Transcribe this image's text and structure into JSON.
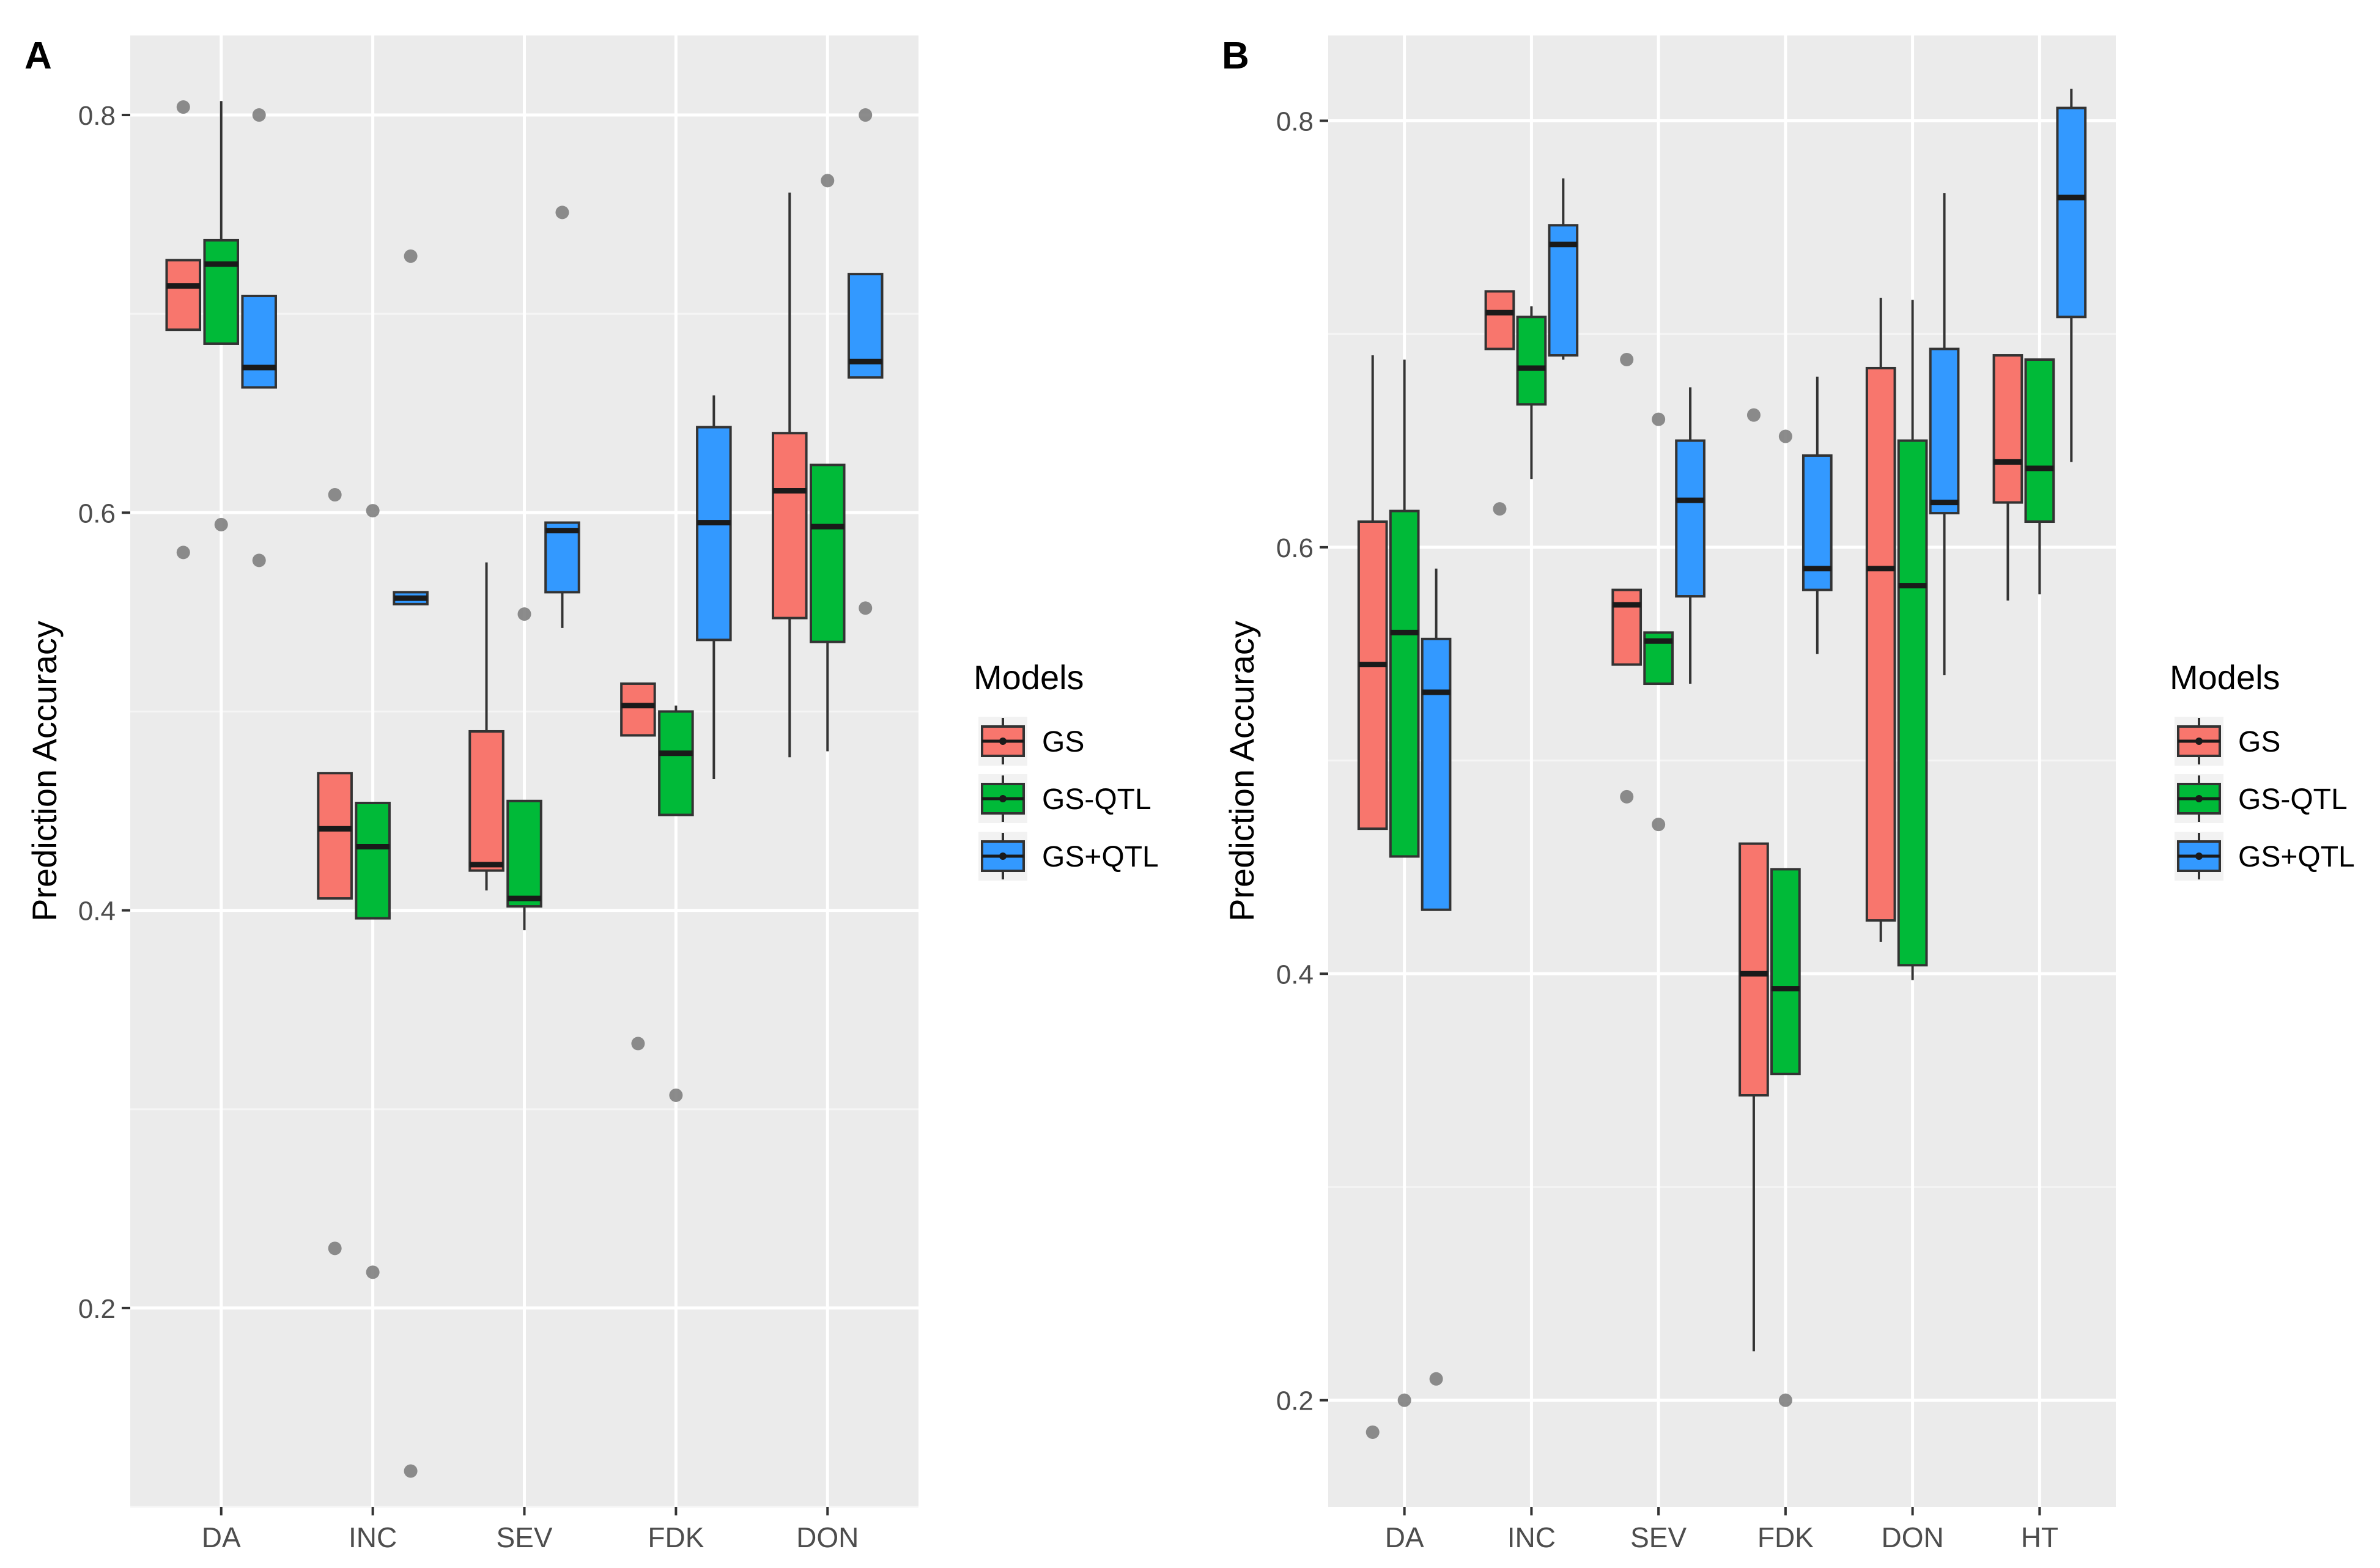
{
  "chart_data": [
    {
      "panel": "A",
      "type": "box",
      "ylabel": "Prediction Accuracy",
      "xlabel": "",
      "ylim": [
        0.1,
        0.84
      ],
      "yticks": [
        0.2,
        0.4,
        0.6,
        0.8
      ],
      "ytick_labels": [
        "0.2",
        "0.4",
        "0.6",
        "0.8"
      ],
      "grid": true,
      "legend": {
        "title": "Models",
        "placement": "right"
      },
      "categories": [
        "DA",
        "INC",
        "SEV",
        "FDK",
        "DON"
      ],
      "series": [
        {
          "name": "GS",
          "color": "#F8766D",
          "boxes": [
            {
              "category": "DA",
              "lower": 0.692,
              "q1": 0.692,
              "median": 0.714,
              "q3": 0.727,
              "upper": 0.727,
              "outliers": [
                0.804,
                0.58
              ]
            },
            {
              "category": "INC",
              "lower": 0.406,
              "q1": 0.406,
              "median": 0.441,
              "q3": 0.469,
              "upper": 0.469,
              "outliers": [
                0.609,
                0.23
              ]
            },
            {
              "category": "SEV",
              "lower": 0.41,
              "q1": 0.42,
              "median": 0.423,
              "q3": 0.49,
              "upper": 0.575,
              "outliers": []
            },
            {
              "category": "FDK",
              "lower": 0.488,
              "q1": 0.488,
              "median": 0.503,
              "q3": 0.514,
              "upper": 0.514,
              "outliers": [
                0.333
              ]
            },
            {
              "category": "DON",
              "lower": 0.477,
              "q1": 0.547,
              "median": 0.611,
              "q3": 0.64,
              "upper": 0.761,
              "outliers": []
            }
          ]
        },
        {
          "name": "GS-QTL",
          "color": "#00BA38",
          "boxes": [
            {
              "category": "DA",
              "lower": 0.685,
              "q1": 0.685,
              "median": 0.725,
              "q3": 0.737,
              "upper": 0.807,
              "outliers": [
                0.594
              ]
            },
            {
              "category": "INC",
              "lower": 0.396,
              "q1": 0.396,
              "median": 0.432,
              "q3": 0.454,
              "upper": 0.454,
              "outliers": [
                0.601,
                0.218
              ]
            },
            {
              "category": "SEV",
              "lower": 0.39,
              "q1": 0.402,
              "median": 0.406,
              "q3": 0.455,
              "upper": 0.455,
              "outliers": [
                0.549
              ]
            },
            {
              "category": "FDK",
              "lower": 0.448,
              "q1": 0.448,
              "median": 0.479,
              "q3": 0.5,
              "upper": 0.503,
              "outliers": [
                0.307
              ]
            },
            {
              "category": "DON",
              "lower": 0.48,
              "q1": 0.535,
              "median": 0.593,
              "q3": 0.624,
              "upper": 0.624,
              "outliers": [
                0.767
              ]
            }
          ]
        },
        {
          "name": "GS+QTL",
          "color": "#3399FF",
          "boxes": [
            {
              "category": "DA",
              "lower": 0.663,
              "q1": 0.663,
              "median": 0.673,
              "q3": 0.709,
              "upper": 0.709,
              "outliers": [
                0.8,
                0.576
              ]
            },
            {
              "category": "INC",
              "lower": 0.554,
              "q1": 0.554,
              "median": 0.557,
              "q3": 0.56,
              "upper": 0.56,
              "outliers": [
                0.729,
                0.118
              ]
            },
            {
              "category": "SEV",
              "lower": 0.542,
              "q1": 0.56,
              "median": 0.591,
              "q3": 0.595,
              "upper": 0.595,
              "outliers": [
                0.751
              ]
            },
            {
              "category": "FDK",
              "lower": 0.466,
              "q1": 0.536,
              "median": 0.595,
              "q3": 0.643,
              "upper": 0.659,
              "outliers": []
            },
            {
              "category": "DON",
              "lower": 0.668,
              "q1": 0.668,
              "median": 0.676,
              "q3": 0.72,
              "upper": 0.72,
              "outliers": [
                0.8,
                0.552
              ]
            }
          ]
        }
      ]
    },
    {
      "panel": "B",
      "type": "box",
      "ylabel": "Prediction Accuracy",
      "xlabel": "",
      "ylim": [
        0.15,
        0.84
      ],
      "yticks": [
        0.2,
        0.4,
        0.6,
        0.8
      ],
      "ytick_labels": [
        "0.2",
        "0.4",
        "0.6",
        "0.8"
      ],
      "grid": true,
      "legend": {
        "title": "Models",
        "placement": "right"
      },
      "categories": [
        "DA",
        "INC",
        "SEV",
        "FDK",
        "DON",
        "HT"
      ],
      "series": [
        {
          "name": "GS",
          "color": "#F8766D",
          "boxes": [
            {
              "category": "DA",
              "lower": 0.468,
              "q1": 0.468,
              "median": 0.545,
              "q3": 0.612,
              "upper": 0.69,
              "outliers": [
                0.185
              ]
            },
            {
              "category": "INC",
              "lower": 0.693,
              "q1": 0.693,
              "median": 0.71,
              "q3": 0.72,
              "upper": 0.72,
              "outliers": [
                0.618
              ]
            },
            {
              "category": "SEV",
              "lower": 0.545,
              "q1": 0.545,
              "median": 0.573,
              "q3": 0.58,
              "upper": 0.58,
              "outliers": [
                0.688,
                0.483
              ]
            },
            {
              "category": "FDK",
              "lower": 0.223,
              "q1": 0.343,
              "median": 0.4,
              "q3": 0.461,
              "upper": 0.461,
              "outliers": [
                0.662
              ]
            },
            {
              "category": "DON",
              "lower": 0.415,
              "q1": 0.425,
              "median": 0.59,
              "q3": 0.684,
              "upper": 0.717,
              "outliers": []
            },
            {
              "category": "HT",
              "lower": 0.575,
              "q1": 0.621,
              "median": 0.64,
              "q3": 0.69,
              "upper": 0.69,
              "outliers": []
            }
          ]
        },
        {
          "name": "GS-QTL",
          "color": "#00BA38",
          "boxes": [
            {
              "category": "DA",
              "lower": 0.455,
              "q1": 0.455,
              "median": 0.56,
              "q3": 0.617,
              "upper": 0.688,
              "outliers": [
                0.2
              ]
            },
            {
              "category": "INC",
              "lower": 0.632,
              "q1": 0.667,
              "median": 0.684,
              "q3": 0.708,
              "upper": 0.713,
              "outliers": []
            },
            {
              "category": "SEV",
              "lower": 0.536,
              "q1": 0.536,
              "median": 0.556,
              "q3": 0.56,
              "upper": 0.56,
              "outliers": [
                0.66,
                0.47
              ]
            },
            {
              "category": "FDK",
              "lower": 0.353,
              "q1": 0.353,
              "median": 0.393,
              "q3": 0.449,
              "upper": 0.449,
              "outliers": [
                0.652,
                0.2
              ]
            },
            {
              "category": "DON",
              "lower": 0.397,
              "q1": 0.404,
              "median": 0.582,
              "q3": 0.65,
              "upper": 0.716,
              "outliers": []
            },
            {
              "category": "HT",
              "lower": 0.578,
              "q1": 0.612,
              "median": 0.637,
              "q3": 0.688,
              "upper": 0.688,
              "outliers": []
            }
          ]
        },
        {
          "name": "GS+QTL",
          "color": "#3399FF",
          "boxes": [
            {
              "category": "DA",
              "lower": 0.43,
              "q1": 0.43,
              "median": 0.532,
              "q3": 0.557,
              "upper": 0.59,
              "outliers": [
                0.21
              ]
            },
            {
              "category": "INC",
              "lower": 0.688,
              "q1": 0.69,
              "median": 0.742,
              "q3": 0.751,
              "upper": 0.773,
              "outliers": []
            },
            {
              "category": "SEV",
              "lower": 0.536,
              "q1": 0.577,
              "median": 0.622,
              "q3": 0.65,
              "upper": 0.675,
              "outliers": []
            },
            {
              "category": "FDK",
              "lower": 0.55,
              "q1": 0.58,
              "median": 0.59,
              "q3": 0.643,
              "upper": 0.68,
              "outliers": []
            },
            {
              "category": "DON",
              "lower": 0.54,
              "q1": 0.616,
              "median": 0.621,
              "q3": 0.693,
              "upper": 0.766,
              "outliers": []
            },
            {
              "category": "HT",
              "lower": 0.64,
              "q1": 0.708,
              "median": 0.764,
              "q3": 0.806,
              "upper": 0.815,
              "outliers": []
            }
          ]
        }
      ]
    }
  ]
}
